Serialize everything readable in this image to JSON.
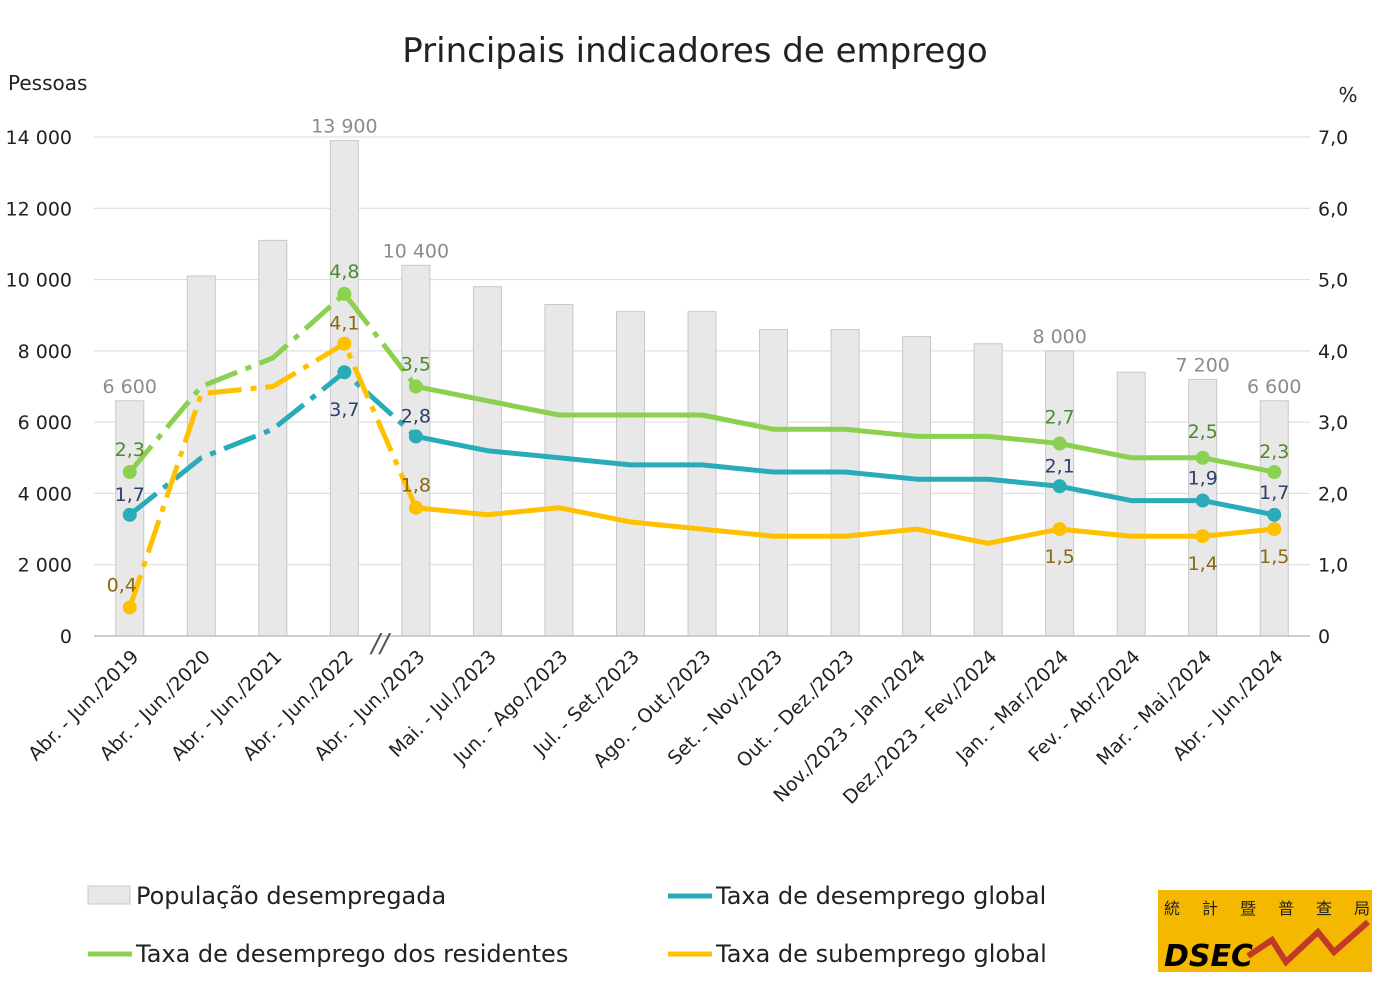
{
  "chart_data": {
    "type": "bar",
    "title": "Principais indicadores de emprego",
    "ylabel_left": "Pessoas",
    "ylabel_right": "%",
    "ylim_left": [
      0,
      14000
    ],
    "ylim_right": [
      0,
      7.0
    ],
    "yticks_left": [
      "0",
      "2 000",
      "4 000",
      "6 000",
      "8 000",
      "10 000",
      "12 000",
      "14 000"
    ],
    "yticks_right": [
      "0",
      "1,0",
      "2,0",
      "3,0",
      "4,0",
      "5,0",
      "6,0",
      "7,0"
    ],
    "grid": true,
    "categories": [
      "Abr. - Jun./2019",
      "Abr. - Jun./2020",
      "Abr. - Jun./2021",
      "Abr. - Jun./2022",
      "Abr. - Jun./2023",
      "Mai. - Jul./2023",
      "Jun. - Ago./2023",
      "Jul. - Set./2023",
      "Ago. - Out./2023",
      "Set. - Nov./2023",
      "Out. - Dez./2023",
      "Nov./2023 - Jan./2024",
      "Dez./2023 - Fev./2024",
      "Jan. - Mar./2024",
      "Fev. - Abr./2024",
      "Mar. - Mai./2024",
      "Abr. - Jun./2024"
    ],
    "axis_break_marker": "//",
    "series": [
      {
        "name": "População desempregada",
        "type": "bar",
        "axis": "left",
        "color": "#e8e8e8",
        "values": [
          6600,
          10100,
          11100,
          13900,
          10400,
          9800,
          9300,
          9100,
          9100,
          8600,
          8600,
          8400,
          8200,
          8000,
          7400,
          7200,
          6600
        ],
        "labels": [
          "6 600",
          "",
          "",
          "13 900",
          "10 400",
          "",
          "",
          "",
          "",
          "",
          "",
          "",
          "",
          "8 000",
          "",
          "7 200",
          "6 600"
        ]
      },
      {
        "name": "Taxa de desemprego global",
        "type": "line",
        "axis": "right",
        "color": "#2aabb8",
        "label_color": "#2e3f6e",
        "values": [
          1.7,
          2.5,
          2.9,
          3.7,
          2.8,
          2.6,
          2.5,
          2.4,
          2.4,
          2.3,
          2.3,
          2.2,
          2.2,
          2.1,
          1.9,
          1.9,
          1.7
        ],
        "labels": [
          "1,7",
          "",
          "",
          "3,7",
          "2,8",
          "",
          "",
          "",
          "",
          "",
          "",
          "",
          "",
          "2,1",
          "",
          "1,9",
          "1,7"
        ]
      },
      {
        "name": "Taxa de desemprego dos residentes",
        "type": "line",
        "axis": "right",
        "color": "#8bd04f",
        "label_color": "#4d8a2a",
        "values": [
          2.3,
          3.5,
          3.9,
          4.8,
          3.5,
          3.3,
          3.1,
          3.1,
          3.1,
          2.9,
          2.9,
          2.8,
          2.8,
          2.7,
          2.5,
          2.5,
          2.3
        ],
        "labels": [
          "2,3",
          "",
          "",
          "4,8",
          "3,5",
          "",
          "",
          "",
          "",
          "",
          "",
          "",
          "",
          "2,7",
          "",
          "2,5",
          "2,3"
        ]
      },
      {
        "name": "Taxa de subemprego global",
        "type": "line",
        "axis": "right",
        "color": "#ffc000",
        "label_color": "#8a6a10",
        "values": [
          0.4,
          3.4,
          3.5,
          4.1,
          1.8,
          1.7,
          1.8,
          1.6,
          1.5,
          1.4,
          1.4,
          1.5,
          1.3,
          1.5,
          1.4,
          1.4,
          1.5
        ],
        "labels": [
          "0,4",
          "",
          "",
          "4,1",
          "1,8",
          "",
          "",
          "",
          "",
          "",
          "",
          "",
          "",
          "1,5",
          "",
          "1,4",
          "1,5"
        ]
      }
    ],
    "legend": "bottom"
  },
  "logo": {
    "chars": [
      "統",
      "計",
      "暨",
      "普",
      "查",
      "局"
    ],
    "name": "DSEC",
    "color": "#f5b800"
  }
}
